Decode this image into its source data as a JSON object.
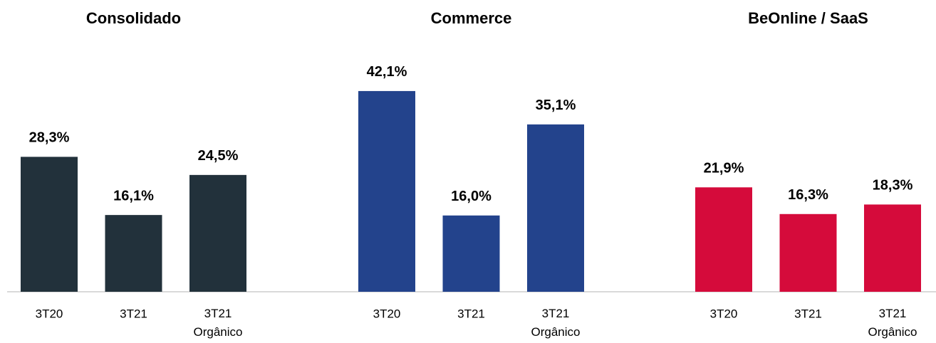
{
  "chart_data": [
    {
      "type": "bar",
      "title": "Consolidado",
      "categories": [
        "3T20",
        "3T21",
        "3T21 Orgânico"
      ],
      "values": [
        28.3,
        16.1,
        24.5
      ],
      "value_labels": [
        "28,3%",
        "16,1%",
        "24,5%"
      ],
      "color": "#22313b",
      "ylim": [
        0,
        60
      ]
    },
    {
      "type": "bar",
      "title": "Commerce",
      "categories": [
        "3T20",
        "3T21",
        "3T21 Orgânico"
      ],
      "values": [
        42.1,
        16.0,
        35.1
      ],
      "value_labels": [
        "42,1%",
        "16,0%",
        "35,1%"
      ],
      "color": "#23438c",
      "ylim": [
        0,
        60
      ]
    },
    {
      "type": "bar",
      "title": "BeOnline / SaaS",
      "categories": [
        "3T20",
        "3T21",
        "3T21 Orgânico"
      ],
      "values": [
        21.9,
        16.3,
        18.3
      ],
      "value_labels": [
        "21,9%",
        "16,3%",
        "18,3%"
      ],
      "color": "#d50b3b",
      "ylim": [
        0,
        60
      ]
    }
  ]
}
